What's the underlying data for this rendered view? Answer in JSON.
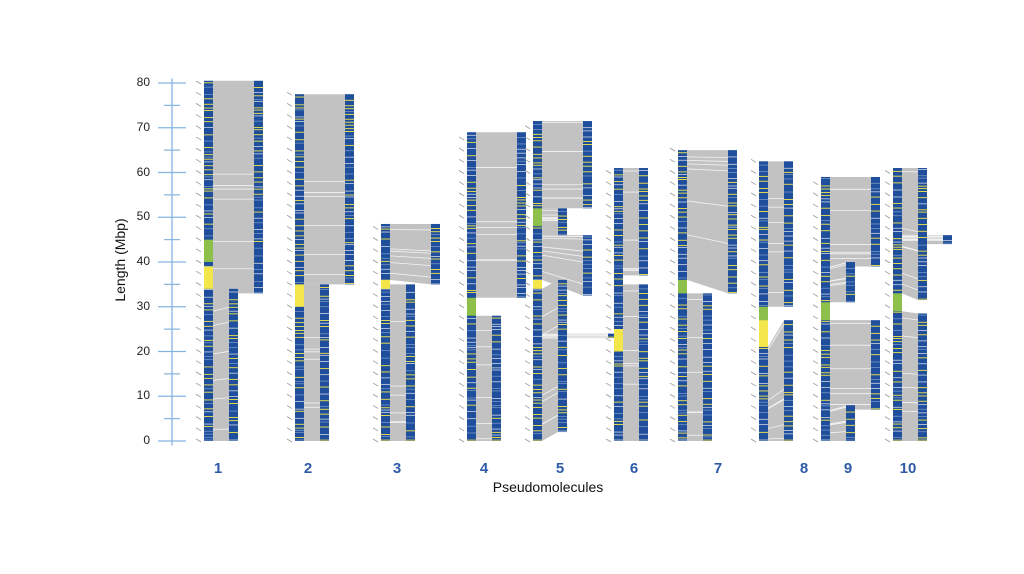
{
  "chart_data": {
    "type": "diagram",
    "ylabel": "Length (Mbp)",
    "xlabel": "Pseudomolecules",
    "ylim": [
      0,
      80
    ],
    "yticks": [
      0,
      10,
      20,
      30,
      40,
      50,
      60,
      70,
      80
    ],
    "colors": {
      "block": "#1f4e9c",
      "synteny": "#c2c2c2",
      "yellow": "#f3e64a",
      "green": "#8cc04a",
      "axis": "#86b4e0",
      "label": "#2e5aa8"
    },
    "chromosomes": [
      {
        "name": "1",
        "length": 80.5,
        "highlights": [
          {
            "color": "green",
            "start": 40,
            "end": 45
          },
          {
            "color": "yellow",
            "start": 34,
            "end": 39
          }
        ],
        "blocks": [
          {
            "track": 2,
            "start": 33,
            "end": 80.5,
            "ref": [
              33,
              80.5
            ]
          },
          {
            "track": 1,
            "start": 0,
            "end": 34,
            "ref": [
              0,
              33
            ]
          }
        ]
      },
      {
        "name": "2",
        "length": 77.5,
        "highlights": [
          {
            "color": "yellow",
            "start": 30,
            "end": 35
          }
        ],
        "blocks": [
          {
            "track": 2,
            "start": 35,
            "end": 77.5,
            "ref": [
              35,
              77.5
            ]
          },
          {
            "track": 1,
            "start": 0,
            "end": 35,
            "ref": [
              0,
              35
            ]
          }
        ]
      },
      {
        "name": "3",
        "length": 48.5,
        "highlights": [
          {
            "color": "yellow",
            "start": 34,
            "end": 36
          }
        ],
        "blocks": [
          {
            "track": 2,
            "start": 35,
            "end": 48.5,
            "ref": [
              36,
              48.5
            ]
          },
          {
            "track": 1,
            "start": 0,
            "end": 35,
            "ref": [
              0,
              35
            ]
          }
        ]
      },
      {
        "name": "4",
        "length": 69,
        "highlights": [
          {
            "color": "green",
            "start": 28,
            "end": 32
          }
        ],
        "blocks": [
          {
            "track": 2,
            "start": 32,
            "end": 69,
            "ref": [
              32,
              69
            ]
          },
          {
            "track": 1,
            "start": 0,
            "end": 28,
            "ref": [
              0,
              28
            ]
          }
        ]
      },
      {
        "name": "5",
        "length": 71.5,
        "highlights": [
          {
            "color": "green",
            "start": 48,
            "end": 52
          },
          {
            "color": "yellow",
            "start": 34,
            "end": 36
          }
        ],
        "blocks": [
          {
            "track": 2,
            "start": 52,
            "end": 71.5,
            "ref": [
              52,
              71.5
            ]
          },
          {
            "track": 1,
            "start": 46,
            "end": 52,
            "ref": [
              46,
              52
            ]
          },
          {
            "track": 2,
            "start": 32.5,
            "end": 46,
            "ref": [
              36,
              46
            ]
          },
          {
            "track": 1,
            "start": 2,
            "end": 36,
            "ref": [
              0,
              34
            ]
          },
          {
            "track": 3,
            "start": 23,
            "end": 24,
            "ref": [
              23,
              24
            ]
          }
        ]
      },
      {
        "name": "6",
        "length": 61,
        "highlights": [
          {
            "color": "yellow",
            "start": 20,
            "end": 25
          }
        ],
        "blocks": [
          {
            "track": 1,
            "start": 37,
            "end": 61,
            "ref": [
              37,
              61
            ]
          },
          {
            "track": 1,
            "start": 0,
            "end": 35,
            "ref": [
              0,
              35
            ]
          }
        ]
      },
      {
        "name": "7",
        "length": 65,
        "highlights": [
          {
            "color": "green",
            "start": 33,
            "end": 36
          }
        ],
        "blocks": [
          {
            "track": 2,
            "start": 33,
            "end": 65,
            "ref": [
              36,
              65
            ]
          },
          {
            "track": 1,
            "start": 0,
            "end": 33,
            "ref": [
              0,
              33
            ]
          }
        ]
      },
      {
        "name": "8",
        "length": 62.5,
        "highlights": [
          {
            "color": "green",
            "start": 27,
            "end": 30
          },
          {
            "color": "yellow",
            "start": 21,
            "end": 27
          }
        ],
        "blocks": [
          {
            "track": 1,
            "start": 30,
            "end": 62.5,
            "ref": [
              30,
              62.5
            ]
          },
          {
            "track": 1,
            "start": 0,
            "end": 27,
            "ref": [
              0,
              21
            ]
          }
        ]
      },
      {
        "name": "9",
        "length": 59,
        "highlights": [
          {
            "color": "green",
            "start": 27,
            "end": 31
          }
        ],
        "blocks": [
          {
            "track": 2,
            "start": 39,
            "end": 59,
            "ref": [
              39,
              59
            ]
          },
          {
            "track": 1,
            "start": 31,
            "end": 40,
            "ref": [
              31,
              39
            ]
          },
          {
            "track": 2,
            "start": 7,
            "end": 27,
            "ref": [
              7,
              27
            ]
          },
          {
            "track": 1,
            "start": 0,
            "end": 8,
            "ref": [
              0,
              7
            ]
          }
        ]
      },
      {
        "name": "10",
        "length": 61,
        "highlights": [
          {
            "color": "green",
            "start": 29,
            "end": 33
          }
        ],
        "blocks": [
          {
            "track": 1,
            "start": 31.5,
            "end": 61,
            "ref": [
              33,
              61
            ]
          },
          {
            "track": 1,
            "start": 0,
            "end": 28.5,
            "ref": [
              0,
              29
            ]
          },
          {
            "track": 2,
            "start": 44,
            "end": 46,
            "ref": [
              44,
              46
            ]
          }
        ]
      }
    ]
  }
}
